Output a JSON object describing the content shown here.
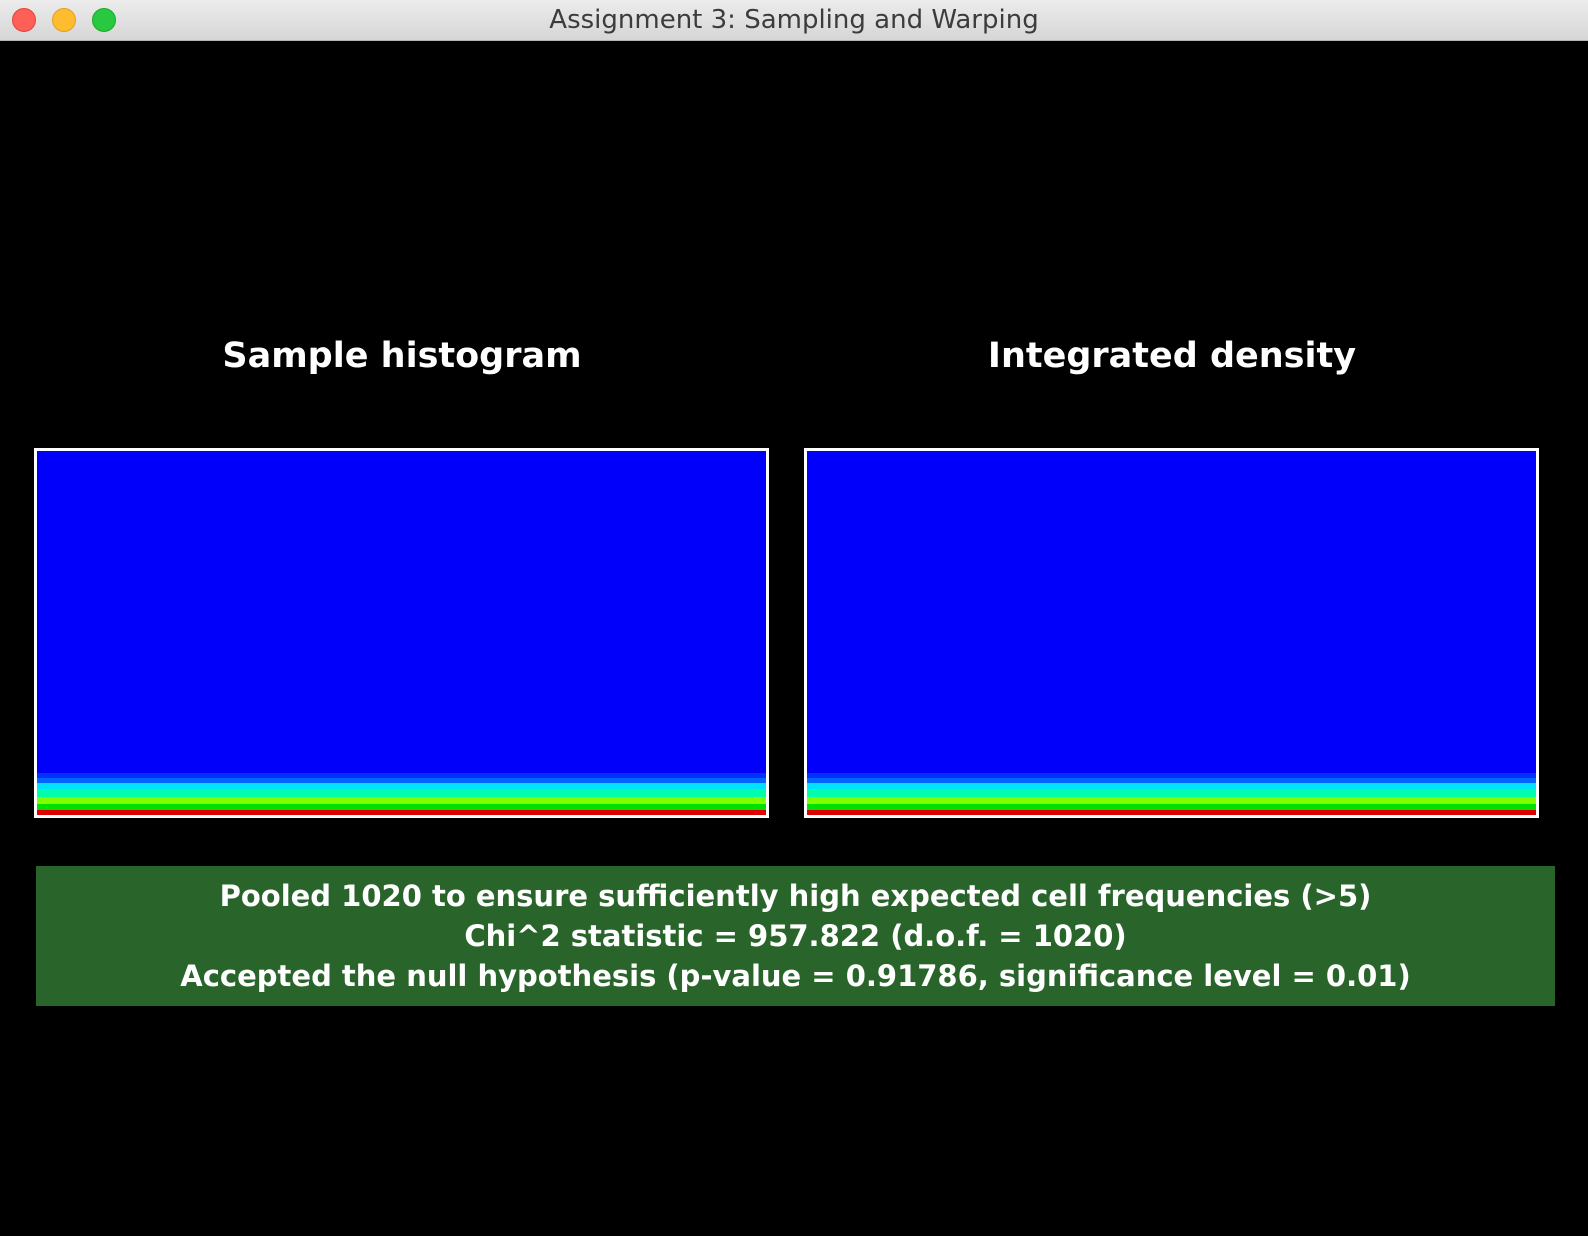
{
  "window": {
    "title": "Assignment 3: Sampling and Warping"
  },
  "panels": {
    "left_title": "Sample histogram",
    "right_title": "Integrated density"
  },
  "colors": {
    "plot_background": "#0000fb",
    "result_background": "#29652a",
    "bands_bottom_to_top": [
      "#e00000",
      "#00e000",
      "#7fff00",
      "#00ffaa",
      "#00e0ff",
      "#0066ff",
      "#0030ff"
    ]
  },
  "result": {
    "line1": "Pooled 1020 to ensure sufficiently high expected cell frequencies (>5)",
    "line2": "Chi^2 statistic = 957.822 (d.o.f. = 1020)",
    "line3": "Accepted the null hypothesis (p-value = 0.91786, significance level = 0.01)"
  }
}
